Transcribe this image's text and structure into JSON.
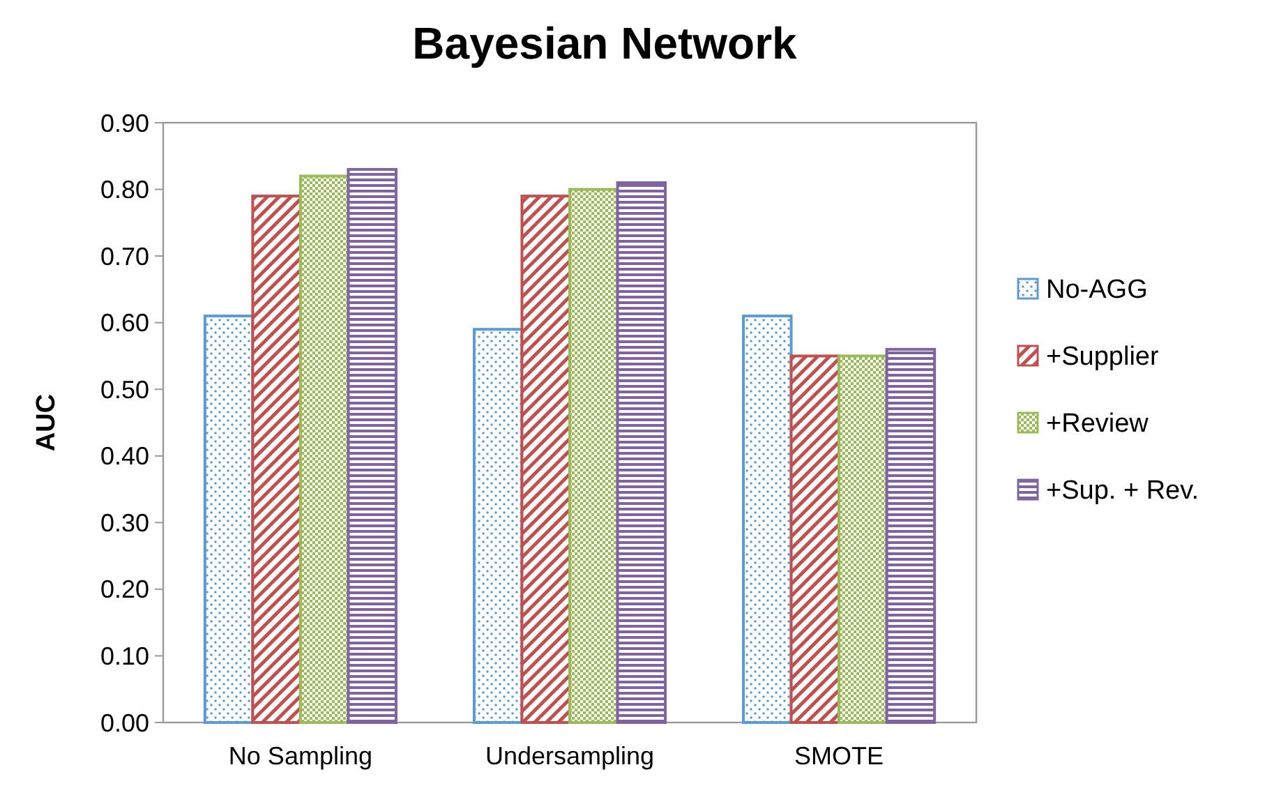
{
  "chart_data": {
    "type": "bar",
    "title": "Bayesian Network",
    "ylabel": "AUC",
    "categories": [
      "No Sampling",
      "Undersampling",
      "SMOTE"
    ],
    "series": [
      {
        "name": "No-AGG",
        "color": "#5b9bd5",
        "values": [
          0.61,
          0.59,
          0.61
        ]
      },
      {
        "name": "+Supplier",
        "color": "#c0504d",
        "values": [
          0.79,
          0.79,
          0.55
        ]
      },
      {
        "name": "+Review",
        "color": "#9bbb59",
        "values": [
          0.82,
          0.8,
          0.55
        ]
      },
      {
        "name": "+Sup. + Rev.",
        "color": "#8064a2",
        "values": [
          0.83,
          0.81,
          0.56
        ]
      }
    ],
    "ylim": [
      0,
      0.9
    ],
    "yticks": [
      {
        "value": 0,
        "label": "0.00"
      },
      {
        "value": 0.1,
        "label": "0.10"
      },
      {
        "value": 0.2,
        "label": "0.20"
      },
      {
        "value": 0.3,
        "label": "0.30"
      },
      {
        "value": 0.4,
        "label": "0.40"
      },
      {
        "value": 0.5,
        "label": "0.50"
      },
      {
        "value": 0.6,
        "label": "0.60"
      },
      {
        "value": 0.7,
        "label": "0.70"
      },
      {
        "value": 0.8,
        "label": "0.80"
      },
      {
        "value": 0.9,
        "label": "0.90"
      }
    ],
    "grid": false,
    "legend": "right"
  }
}
